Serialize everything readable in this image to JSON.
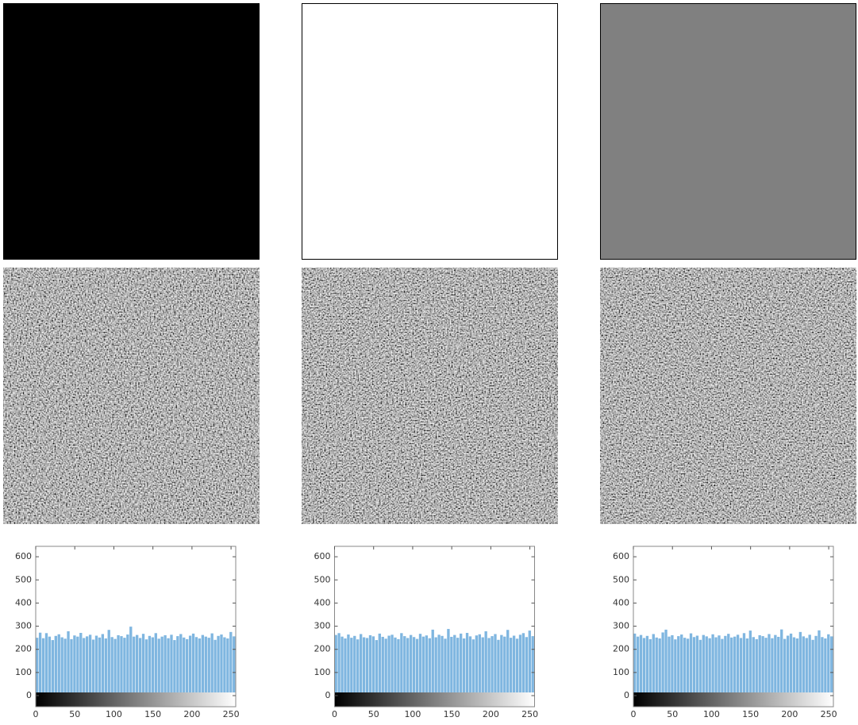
{
  "chart_data": [
    {
      "type": "histogram",
      "color": "#7fb6e0",
      "bins": [
        0,
        4,
        8,
        12,
        16,
        20,
        24,
        28,
        32,
        36,
        40,
        44,
        48,
        52,
        56,
        60,
        64,
        68,
        72,
        76,
        80,
        84,
        88,
        92,
        96,
        100,
        104,
        108,
        112,
        116,
        120,
        124,
        128,
        132,
        136,
        140,
        144,
        148,
        152,
        156,
        160,
        164,
        168,
        172,
        176,
        180,
        184,
        188,
        192,
        196,
        200,
        204,
        208,
        212,
        216,
        220,
        224,
        228,
        232,
        236,
        240,
        244,
        248,
        252,
        256
      ],
      "values": [
        250,
        272,
        248,
        270,
        255,
        240,
        258,
        265,
        252,
        246,
        278,
        244,
        260,
        255,
        271,
        249,
        256,
        263,
        242,
        259,
        251,
        266,
        247,
        284,
        253,
        245,
        261,
        257,
        250,
        264,
        298,
        255,
        262,
        249,
        267,
        243,
        258,
        252,
        270,
        246,
        255,
        261,
        248,
        263,
        240,
        257,
        266,
        251,
        244,
        259,
        268,
        253,
        247,
        262,
        255,
        250,
        269,
        241,
        258,
        264,
        252,
        247,
        275,
        256
      ],
      "xlim": [
        0,
        256
      ],
      "ylim": [
        -48,
        645
      ],
      "xticks": [
        0,
        50,
        100,
        150,
        200,
        250
      ],
      "yticks": [
        0,
        100,
        200,
        300,
        400,
        500,
        600
      ]
    },
    {
      "type": "histogram",
      "color": "#7fb6e0",
      "bins": [
        0,
        4,
        8,
        12,
        16,
        20,
        24,
        28,
        32,
        36,
        40,
        44,
        48,
        52,
        56,
        60,
        64,
        68,
        72,
        76,
        80,
        84,
        88,
        92,
        96,
        100,
        104,
        108,
        112,
        116,
        120,
        124,
        128,
        132,
        136,
        140,
        144,
        148,
        152,
        156,
        160,
        164,
        168,
        172,
        176,
        180,
        184,
        188,
        192,
        196,
        200,
        204,
        208,
        212,
        216,
        220,
        224,
        228,
        232,
        236,
        240,
        244,
        248,
        252,
        256
      ],
      "values": [
        262,
        270,
        255,
        247,
        264,
        250,
        258,
        243,
        266,
        252,
        249,
        261,
        256,
        240,
        268,
        254,
        246,
        259,
        263,
        251,
        244,
        270,
        257,
        249,
        262,
        253,
        245,
        267,
        255,
        260,
        248,
        285,
        252,
        263,
        258,
        246,
        288,
        254,
        262,
        250,
        268,
        247,
        271,
        256,
        243,
        260,
        265,
        252,
        278,
        249,
        257,
        266,
        241,
        262,
        255,
        284,
        250,
        259,
        246,
        263,
        270,
        253,
        281,
        257
      ],
      "xlim": [
        0,
        256
      ],
      "ylim": [
        -48,
        645
      ],
      "xticks": [
        0,
        50,
        100,
        150,
        200,
        250
      ],
      "yticks": [
        0,
        100,
        200,
        300,
        400,
        500,
        600
      ]
    },
    {
      "type": "histogram",
      "color": "#7fb6e0",
      "bins": [
        0,
        4,
        8,
        12,
        16,
        20,
        24,
        28,
        32,
        36,
        40,
        44,
        48,
        52,
        56,
        60,
        64,
        68,
        72,
        76,
        80,
        84,
        88,
        92,
        96,
        100,
        104,
        108,
        112,
        116,
        120,
        124,
        128,
        132,
        136,
        140,
        144,
        148,
        152,
        156,
        160,
        164,
        168,
        172,
        176,
        180,
        184,
        188,
        192,
        196,
        200,
        204,
        208,
        212,
        216,
        220,
        224,
        228,
        232,
        236,
        240,
        244,
        248,
        252,
        256
      ],
      "values": [
        268,
        255,
        262,
        249,
        258,
        244,
        266,
        251,
        247,
        273,
        285,
        255,
        261,
        243,
        257,
        264,
        250,
        246,
        269,
        253,
        259,
        241,
        262,
        256,
        248,
        265,
        252,
        260,
        245,
        258,
        267,
        251,
        255,
        263,
        249,
        270,
        247,
        281,
        253,
        244,
        261,
        257,
        250,
        266,
        248,
        262,
        254,
        286,
        245,
        259,
        268,
        252,
        247,
        275,
        256,
        249,
        263,
        241,
        258,
        282,
        253,
        247,
        265,
        256
      ],
      "xlim": [
        0,
        256
      ],
      "ylim": [
        -48,
        645
      ],
      "xticks": [
        0,
        50,
        100,
        150,
        200,
        250
      ],
      "yticks": [
        0,
        100,
        200,
        300,
        400,
        500,
        600
      ]
    }
  ]
}
